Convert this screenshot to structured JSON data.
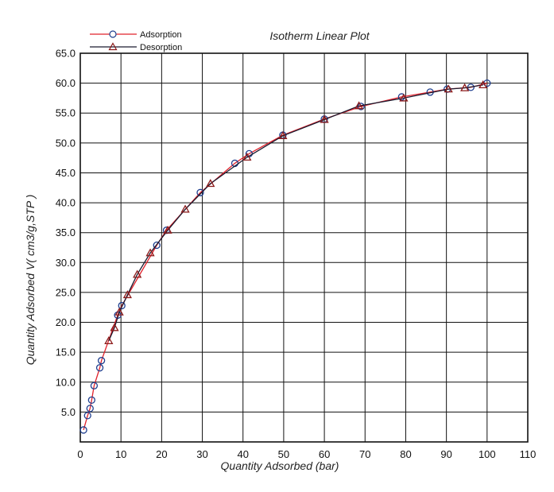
{
  "chart_data": {
    "type": "line",
    "title": "Isotherm Linear Plot",
    "xlabel": "Quantity Adsorbed  (bar)",
    "ylabel": "Quantity Adsorbed  V( cm3/g,STP )",
    "xlim": [
      0,
      110
    ],
    "ylim": [
      0,
      65
    ],
    "xticks": [
      0,
      10,
      20,
      30,
      40,
      50,
      60,
      70,
      80,
      90,
      100,
      110
    ],
    "xtick_labels": [
      "0",
      "10",
      "20",
      "30",
      "40",
      "50",
      "60",
      "70",
      "80",
      "90",
      "100",
      "110"
    ],
    "yticks": [
      5,
      10,
      15,
      20,
      25,
      30,
      35,
      40,
      45,
      50,
      55,
      60,
      65
    ],
    "ytick_labels": [
      "5.0",
      "10.0",
      "15.0",
      "20.0",
      "25.0",
      "30.0",
      "35.0",
      "40.0",
      "45.0",
      "50.0",
      "55.0",
      "60.0",
      "65.0"
    ],
    "grid": true,
    "legend_position": "top-left",
    "series": [
      {
        "name": "Adsorption",
        "color": "#e0202a",
        "marker": "circle",
        "marker_color": "#1f3f8f",
        "x": [
          0.8,
          1.8,
          2.4,
          2.8,
          3.4,
          4.8,
          5.2,
          9.2,
          10.2,
          18.8,
          21.2,
          29.5,
          38.0,
          41.5,
          49.8,
          60.0,
          69.0,
          79.0,
          86.0,
          90.2,
          96.0,
          100.0
        ],
        "y": [
          2.0,
          4.4,
          5.6,
          7.0,
          9.4,
          12.4,
          13.6,
          21.2,
          22.8,
          32.9,
          35.4,
          41.7,
          46.6,
          48.2,
          51.3,
          54.0,
          56.1,
          57.7,
          58.5,
          59.0,
          59.3,
          60.0
        ]
      },
      {
        "name": "Desorption",
        "color": "#1a1a2e",
        "marker": "triangle",
        "marker_color": "#8b1a1a",
        "x": [
          99.0,
          94.5,
          90.5,
          79.5,
          68.5,
          60.0,
          49.8,
          41.0,
          32.0,
          25.8,
          21.5,
          17.2,
          14.0,
          11.6,
          9.6,
          8.4,
          7.0
        ],
        "y": [
          59.7,
          59.2,
          59.0,
          57.5,
          56.2,
          53.9,
          51.2,
          47.6,
          43.2,
          38.9,
          35.4,
          31.6,
          28.0,
          24.6,
          21.7,
          19.1,
          16.9
        ]
      }
    ]
  }
}
